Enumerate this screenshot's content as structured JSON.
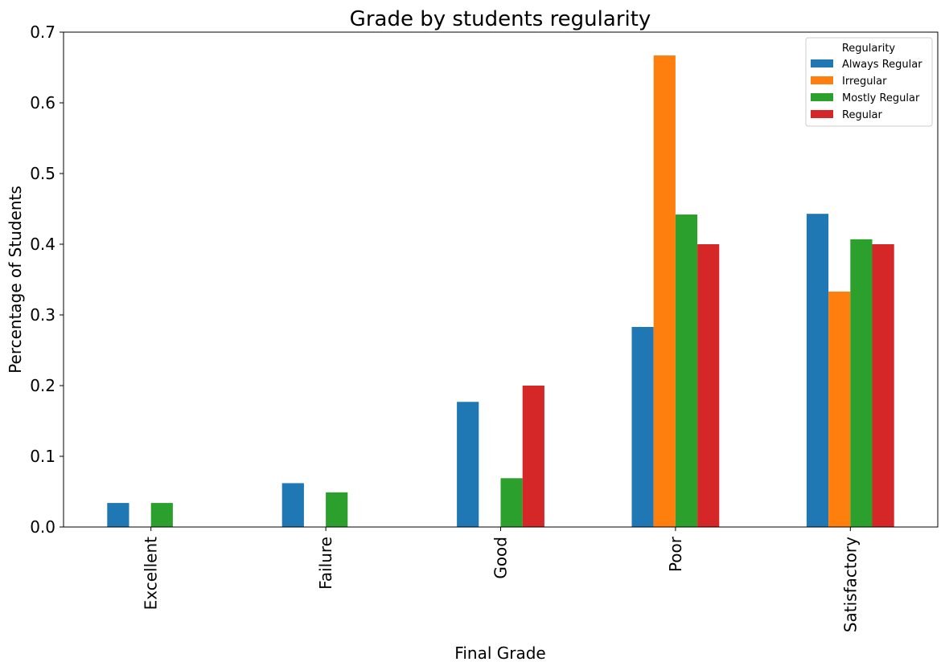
{
  "chart_data": {
    "type": "bar",
    "title": "Grade by students regularity",
    "xlabel": "Final Grade",
    "ylabel": "Percentage of Students",
    "categories": [
      "Excellent",
      "Failure",
      "Good",
      "Poor",
      "Satisfactory"
    ],
    "ylim": [
      0,
      0.7
    ],
    "yticks": [
      "0.0",
      "0.1",
      "0.2",
      "0.3",
      "0.4",
      "0.5",
      "0.6",
      "0.7"
    ],
    "grid": false,
    "legend": {
      "title": "Regularity",
      "placement": "top-right"
    },
    "series": [
      {
        "name": "Always Regular",
        "color": "#1f77b4",
        "values": [
          0.034,
          0.062,
          0.177,
          0.283,
          0.443
        ]
      },
      {
        "name": "Irregular",
        "color": "#ff7f0e",
        "values": [
          0,
          0,
          0,
          0.667,
          0.333
        ]
      },
      {
        "name": "Mostly Regular",
        "color": "#2ca02c",
        "values": [
          0.034,
          0.049,
          0.069,
          0.442,
          0.407
        ]
      },
      {
        "name": "Regular",
        "color": "#d62728",
        "values": [
          0,
          0,
          0.2,
          0.4,
          0.4
        ]
      }
    ]
  }
}
